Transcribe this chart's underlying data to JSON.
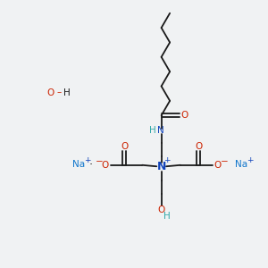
{
  "background_color": "#f0f2f3",
  "fig_size": [
    3.0,
    3.0
  ],
  "dpi": 100,
  "xlim": [
    0,
    10
  ],
  "ylim": [
    0,
    10
  ],
  "chain_color": "#1a1a1a",
  "N_color": "#1144bb",
  "O_color": "#cc2200",
  "Na_color": "#1177cc",
  "H_color": "#33aaaa",
  "plus_color": "#1144bb",
  "minus_color": "#cc2200",
  "lw": 1.3,
  "fs": 7.5,
  "fs_small": 6.5
}
